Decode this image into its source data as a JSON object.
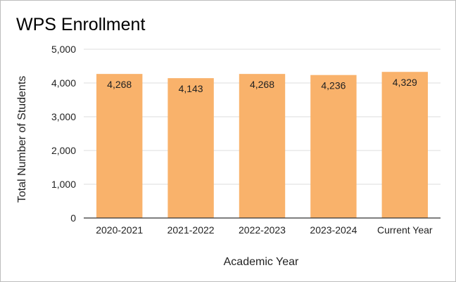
{
  "chart_data": {
    "type": "bar",
    "title": "WPS Enrollment",
    "xlabel": "Academic Year",
    "ylabel": "Total Number of Students",
    "categories": [
      "2020-2021",
      "2021-2022",
      "2022-2023",
      "2023-2024",
      "Current Year"
    ],
    "values": [
      4268,
      4143,
      4268,
      4236,
      4329
    ],
    "data_labels": [
      "4,268",
      "4,143",
      "4,268",
      "4,236",
      "4,329"
    ],
    "ylim": [
      0,
      5000
    ],
    "yticks": [
      0,
      1000,
      2000,
      3000,
      4000,
      5000
    ],
    "ytick_labels": [
      "0",
      "1,000",
      "2,000",
      "3,000",
      "4,000",
      "5,000"
    ],
    "grid": true,
    "legend": "none",
    "bar_color": "#f9b26b"
  }
}
